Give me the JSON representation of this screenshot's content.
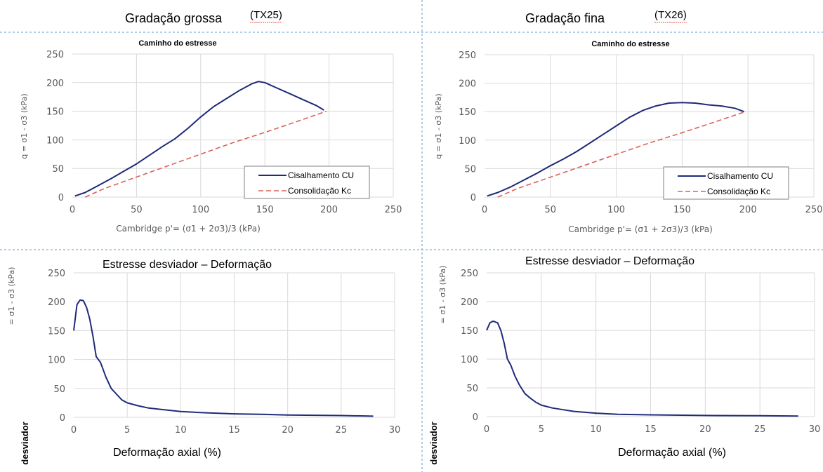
{
  "headers": {
    "left_title": "Gradação grossa",
    "left_tag": "(TX25)",
    "right_title": "Gradação fina",
    "right_tag": "(TX26)"
  },
  "colors": {
    "cu_line": "#1f2a7a",
    "kc_line": "#d9605a",
    "grid": "#d9d9d9",
    "divider": "#5b9bd5"
  },
  "chart_data": [
    {
      "id": "tl",
      "type": "line",
      "title": "Caminho do estresse",
      "xlabel": "Cambridge p'= (σ1 + 2σ3)/3  (kPa)",
      "ylabel": "q = σ1 - σ3 (kPa)",
      "xlim": [
        0,
        250
      ],
      "ylim": [
        0,
        250
      ],
      "xticks": [
        0,
        50,
        100,
        150,
        200,
        250
      ],
      "yticks": [
        0,
        50,
        100,
        150,
        200,
        250
      ],
      "grid": true,
      "legend": "bottom-right",
      "series": [
        {
          "name": "Cisalhamento CU",
          "style": "solid",
          "x": [
            2,
            10,
            20,
            30,
            40,
            50,
            60,
            70,
            80,
            90,
            100,
            110,
            120,
            130,
            140,
            145,
            150,
            160,
            170,
            180,
            190,
            196
          ],
          "y": [
            2,
            8,
            20,
            32,
            45,
            58,
            73,
            88,
            102,
            120,
            140,
            158,
            172,
            186,
            198,
            202,
            200,
            190,
            180,
            170,
            160,
            152
          ]
        },
        {
          "name": "Consolidação Kc",
          "style": "dashed",
          "x": [
            10,
            15,
            25,
            50,
            75,
            100,
            125,
            150,
            175,
            198
          ],
          "y": [
            0,
            5,
            15,
            35,
            55,
            75,
            95,
            113,
            132,
            150
          ]
        }
      ]
    },
    {
      "id": "tr",
      "type": "line",
      "title": "Caminho do estresse",
      "xlabel": "Cambridge p'= (σ1 + 2σ3)/3  (kPa)",
      "ylabel": "q = σ1 - σ3 (kPa)",
      "xlim": [
        0,
        250
      ],
      "ylim": [
        0,
        250
      ],
      "xticks": [
        0,
        50,
        100,
        150,
        200,
        250
      ],
      "yticks": [
        0,
        50,
        100,
        150,
        200,
        250
      ],
      "grid": true,
      "legend": "bottom-right",
      "series": [
        {
          "name": "Cisalhamento CU",
          "style": "solid",
          "x": [
            2,
            10,
            20,
            30,
            40,
            50,
            60,
            70,
            80,
            90,
            100,
            110,
            120,
            130,
            140,
            150,
            160,
            170,
            180,
            190,
            197
          ],
          "y": [
            2,
            8,
            18,
            30,
            42,
            55,
            67,
            80,
            95,
            110,
            125,
            140,
            152,
            160,
            165,
            166,
            165,
            162,
            160,
            156,
            150
          ]
        },
        {
          "name": "Consolidação Kc",
          "style": "dashed",
          "x": [
            10,
            15,
            25,
            50,
            75,
            100,
            125,
            150,
            175,
            198
          ],
          "y": [
            0,
            5,
            15,
            35,
            55,
            75,
            95,
            113,
            132,
            150
          ]
        }
      ]
    },
    {
      "id": "bl",
      "type": "line",
      "title": "Estresse desviador – Deformação",
      "xlabel": "Deformação axial (%)",
      "ylabel": "= σ1 - σ3 (kPa)",
      "ylabel_rotated": "desviador",
      "xlim": [
        0,
        30
      ],
      "ylim": [
        0,
        250
      ],
      "xticks": [
        0,
        5,
        10,
        15,
        20,
        25,
        30
      ],
      "yticks": [
        0,
        50,
        100,
        150,
        200,
        250
      ],
      "grid": true,
      "series": [
        {
          "name": "",
          "style": "solid",
          "x": [
            0,
            0.3,
            0.6,
            0.9,
            1.2,
            1.5,
            1.8,
            2.1,
            2.5,
            3,
            3.5,
            4,
            4.5,
            5,
            6,
            7,
            8,
            10,
            12,
            15,
            18,
            20,
            25,
            28
          ],
          "y": [
            150,
            195,
            203,
            202,
            190,
            170,
            140,
            105,
            95,
            70,
            50,
            40,
            30,
            25,
            20,
            16,
            14,
            10,
            8,
            6,
            5,
            4,
            3,
            2
          ]
        }
      ]
    },
    {
      "id": "br",
      "type": "line",
      "title": "Estresse desviador – Deformação",
      "xlabel": "Deformação axial (%)",
      "ylabel": "= σ1 - σ3 (kPa)",
      "ylabel_rotated": "desviador",
      "xlim": [
        0,
        30
      ],
      "ylim": [
        0,
        250
      ],
      "xticks": [
        0,
        5,
        10,
        15,
        20,
        25,
        30
      ],
      "yticks": [
        0,
        50,
        100,
        150,
        200,
        250
      ],
      "grid": true,
      "series": [
        {
          "name": "",
          "style": "solid",
          "x": [
            0,
            0.3,
            0.6,
            1,
            1.3,
            1.6,
            1.9,
            2.2,
            2.6,
            3,
            3.5,
            4,
            4.5,
            5,
            6,
            7,
            8,
            10,
            12,
            15,
            20,
            25,
            28.5
          ],
          "y": [
            150,
            163,
            166,
            163,
            150,
            128,
            100,
            90,
            70,
            55,
            40,
            32,
            25,
            20,
            15,
            12,
            9,
            6,
            4,
            3,
            2,
            1.5,
            1
          ]
        }
      ]
    }
  ]
}
